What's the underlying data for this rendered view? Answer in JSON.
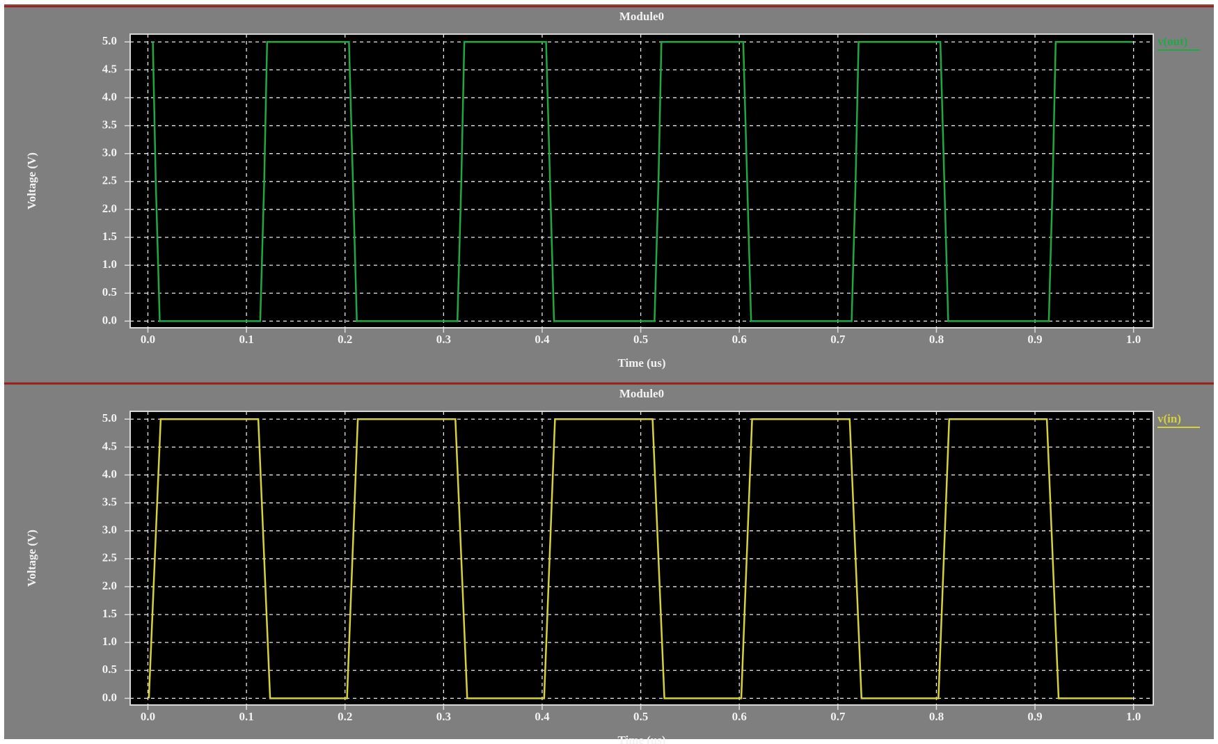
{
  "chart_data": [
    {
      "type": "line",
      "title": "Module0",
      "x_label": "Time (us)",
      "y_label": "Voltage (V)",
      "x": [
        0.005,
        0.008,
        0.012,
        0.114,
        0.118,
        0.121,
        0.204,
        0.208,
        0.212,
        0.314,
        0.318,
        0.321,
        0.404,
        0.408,
        0.412,
        0.514,
        0.518,
        0.521,
        0.604,
        0.608,
        0.612,
        0.714,
        0.718,
        0.721,
        0.804,
        0.808,
        0.812,
        0.914,
        0.918,
        0.921,
        0.999
      ],
      "series": [
        {
          "name": "v(out)",
          "color": "#1fa846",
          "values": [
            5,
            2.5,
            0,
            0,
            2.5,
            5,
            5,
            2.5,
            0,
            0,
            2.5,
            5,
            5,
            2.5,
            0,
            0,
            2.5,
            5,
            5,
            2.5,
            0,
            0,
            2.5,
            5,
            5,
            2.5,
            0,
            0,
            2.5,
            5,
            5
          ]
        }
      ],
      "xlim": [
        -0.018,
        1.02
      ],
      "ylim": [
        -0.12,
        5.14
      ],
      "xticks": [
        {
          "value": 0,
          "label": "0.0"
        },
        0.1,
        0.2,
        0.3,
        0.4,
        0.5,
        0.6,
        0.7,
        0.8,
        0.9,
        {
          "value": 1,
          "label": "1.0"
        }
      ],
      "yticks": [
        {
          "value": 0,
          "label": "0.0"
        },
        0.5,
        {
          "value": 1,
          "label": "1.0"
        },
        1.5,
        {
          "value": 2,
          "label": "2.0"
        },
        2.5,
        {
          "value": 3,
          "label": "3.0"
        },
        3.5,
        {
          "value": 4,
          "label": "4.0"
        },
        4.5,
        {
          "value": 5,
          "label": "5.0"
        }
      ],
      "grid": true,
      "legend": "right"
    },
    {
      "type": "line",
      "title": "Module0",
      "x_label": "Time (us)",
      "y_label": "Voltage (V)",
      "x": [
        0.001,
        0.013,
        0.112,
        0.124,
        0.202,
        0.213,
        0.312,
        0.324,
        0.402,
        0.413,
        0.512,
        0.524,
        0.602,
        0.613,
        0.712,
        0.724,
        0.802,
        0.813,
        0.912,
        0.924,
        0.999
      ],
      "series": [
        {
          "name": "v(in)",
          "color": "#d8d23a",
          "values": [
            0,
            5,
            5,
            0,
            0,
            5,
            5,
            0,
            0,
            5,
            5,
            0,
            0,
            5,
            5,
            0,
            0,
            5,
            5,
            0,
            0
          ]
        }
      ],
      "xlim": [
        -0.018,
        1.02
      ],
      "ylim": [
        -0.12,
        5.14
      ],
      "xticks": [
        {
          "value": 0,
          "label": "0.0"
        },
        0.1,
        0.2,
        0.3,
        0.4,
        0.5,
        0.6,
        0.7,
        0.8,
        0.9,
        {
          "value": 1,
          "label": "1.0"
        }
      ],
      "yticks": [
        {
          "value": 0,
          "label": "0.0"
        },
        0.5,
        {
          "value": 1,
          "label": "1.0"
        },
        1.5,
        {
          "value": 2,
          "label": "2.0"
        },
        2.5,
        {
          "value": 3,
          "label": "3.0"
        },
        3.5,
        {
          "value": 4,
          "label": "4.0"
        },
        4.5,
        {
          "value": 5,
          "label": "5.0"
        }
      ],
      "grid": true,
      "legend": "right"
    }
  ]
}
